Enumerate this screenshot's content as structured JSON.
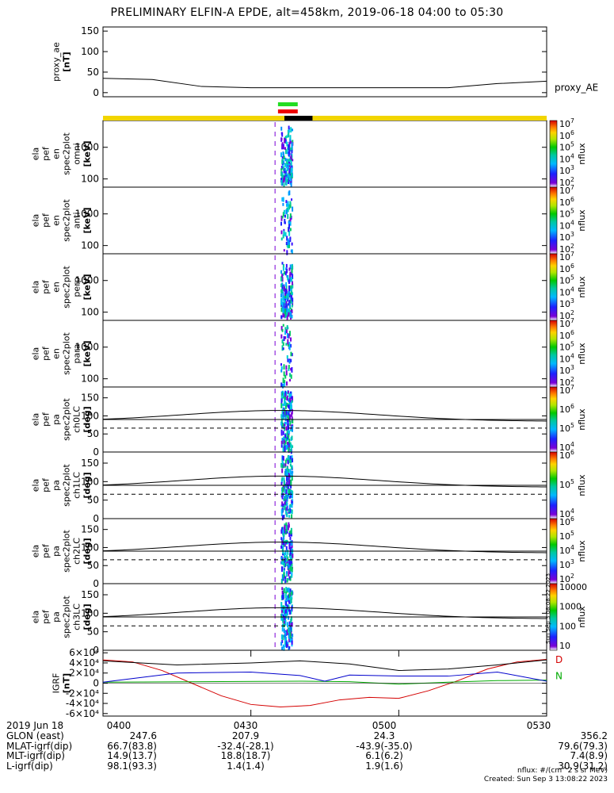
{
  "title": "PRELIMINARY ELFIN-A EPDE, alt=458km, 2019-06-18 04:00 to 05:30",
  "chart_data": [
    {
      "type": "line",
      "id": "proxy_ae",
      "ylabel_lines": [
        "proxy_ae",
        "[nT]"
      ],
      "ylim": [
        -10,
        160
      ],
      "yticks": [
        0,
        50,
        100,
        150
      ],
      "legend": "proxy_AE",
      "x_minutes": [
        0,
        10,
        20,
        30,
        40,
        50,
        60,
        70,
        80,
        90
      ],
      "values": [
        35,
        32,
        15,
        12,
        12,
        12,
        12,
        12,
        22,
        28
      ]
    },
    {
      "type": "heatmap",
      "id": "ela_pef_en_omni",
      "ylabel_lines": [
        "ela",
        "pef",
        "en",
        "spec2plot",
        "omni",
        "[keV]"
      ],
      "yscale": "log",
      "ylim": [
        55,
        7000
      ],
      "yticks": [
        100,
        1000
      ],
      "ytick_labels": [
        "100",
        "1000"
      ],
      "zlabel": "nflux",
      "zticks": [
        "10^2",
        "10^3",
        "10^4",
        "10^5",
        "10^6",
        "10^7"
      ]
    },
    {
      "type": "heatmap",
      "id": "ela_pef_en_anti",
      "ylabel_lines": [
        "ela",
        "pef",
        "en",
        "spec2plot",
        "anti",
        "[keV]"
      ],
      "yscale": "log",
      "ylim": [
        55,
        7000
      ],
      "yticks": [
        100,
        1000
      ],
      "ytick_labels": [
        "100",
        "1000"
      ],
      "zlabel": "nflux",
      "zticks": [
        "10^2",
        "10^3",
        "10^4",
        "10^5",
        "10^6",
        "10^7"
      ]
    },
    {
      "type": "heatmap",
      "id": "ela_pef_en_perp",
      "ylabel_lines": [
        "ela",
        "pef",
        "en",
        "spec2plot",
        "perp",
        "[keV]"
      ],
      "yscale": "log",
      "ylim": [
        55,
        7000
      ],
      "yticks": [
        100,
        1000
      ],
      "ytick_labels": [
        "100",
        "1000"
      ],
      "zlabel": "nflux",
      "zticks": [
        "10^2",
        "10^3",
        "10^4",
        "10^5",
        "10^6",
        "10^7"
      ]
    },
    {
      "type": "heatmap",
      "id": "ela_pef_en_para",
      "ylabel_lines": [
        "ela",
        "pef",
        "en",
        "spec2plot",
        "para",
        "[keV]"
      ],
      "yscale": "log",
      "ylim": [
        55,
        7000
      ],
      "yticks": [
        100,
        1000
      ],
      "ytick_labels": [
        "100",
        "1000"
      ],
      "zlabel": "nflux",
      "zticks": [
        "10^2",
        "10^3",
        "10^4",
        "10^5",
        "10^6",
        "10^7"
      ]
    },
    {
      "type": "heatmap",
      "id": "ela_pef_pa_ch0LC",
      "ylabel_lines": [
        "ela",
        "pef",
        "pa",
        "spec2plot",
        "ch0LC",
        "[deg]"
      ],
      "ylim": [
        0,
        180
      ],
      "yticks": [
        0,
        50,
        100,
        150
      ],
      "zlabel": "nflux",
      "zticks": [
        "10^4",
        "10^5",
        "10^6",
        "10^7"
      ]
    },
    {
      "type": "heatmap",
      "id": "ela_pef_pa_ch1LC",
      "ylabel_lines": [
        "ela",
        "pef",
        "pa",
        "spec2plot",
        "ch1LC",
        "[deg]"
      ],
      "ylim": [
        0,
        180
      ],
      "yticks": [
        0,
        50,
        100,
        150
      ],
      "zlabel": "nflux",
      "zticks": [
        "10^4",
        "10^5",
        "10^6"
      ]
    },
    {
      "type": "heatmap",
      "id": "ela_pef_pa_ch2LC",
      "ylabel_lines": [
        "ela",
        "pef",
        "pa",
        "spec2plot",
        "ch2LC",
        "[deg]"
      ],
      "ylim": [
        0,
        180
      ],
      "yticks": [
        0,
        50,
        100,
        150
      ],
      "zlabel": "nflux",
      "zticks": [
        "10^2",
        "10^3",
        "10^4",
        "10^5",
        "10^6"
      ]
    },
    {
      "type": "heatmap",
      "id": "ela_pef_pa_ch3LC",
      "ylabel_lines": [
        "ela",
        "pef",
        "pa",
        "spec2plot",
        "ch3LC",
        "[deg]"
      ],
      "ylim": [
        0,
        180
      ],
      "yticks": [
        0,
        50,
        100,
        150
      ],
      "zlabel": "nflux",
      "zticks": [
        "10",
        "100",
        "1000",
        "10000"
      ]
    },
    {
      "type": "line",
      "id": "igrf",
      "ylabel_lines": [
        "IGRF",
        "[nT]"
      ],
      "ylim": [
        -65000,
        65000
      ],
      "ytick_labels": [
        "-6×10⁴",
        "-4×10⁴",
        "-2×10⁴",
        "0",
        "2×10⁴",
        "4×10⁴",
        "6×10⁴"
      ],
      "yticks": [
        -60000,
        -40000,
        -20000,
        0,
        20000,
        40000,
        60000
      ],
      "legend": [
        "D",
        "N"
      ],
      "series": [
        {
          "name": "D",
          "color": "#d40000",
          "x_minutes": [
            0,
            6,
            12,
            18,
            24,
            30,
            36,
            42,
            48,
            54,
            60,
            66,
            72,
            78,
            84,
            90
          ],
          "values": [
            46000,
            42000,
            25000,
            0,
            -25000,
            -42000,
            -47000,
            -44000,
            -33000,
            -28000,
            -30000,
            -15000,
            5000,
            28000,
            42000,
            47000
          ]
        },
        {
          "name": "N",
          "color": "#00aa00",
          "x_minutes": [
            0,
            20,
            40,
            50,
            60,
            70,
            80,
            90
          ],
          "values": [
            2000,
            3000,
            4000,
            3000,
            -2000,
            2000,
            5000,
            6000
          ]
        },
        {
          "name": "",
          "color": "#0000cc",
          "x_minutes": [
            0,
            15,
            30,
            40,
            45,
            50,
            60,
            70,
            80,
            90
          ],
          "values": [
            2000,
            20000,
            22000,
            15000,
            4000,
            16000,
            14000,
            14000,
            22000,
            4000
          ]
        },
        {
          "name": "",
          "color": "#000000",
          "x_minutes": [
            0,
            15,
            30,
            40,
            50,
            60,
            70,
            80,
            90
          ],
          "values": [
            44000,
            36000,
            40000,
            44000,
            38000,
            25000,
            28000,
            36000,
            46000
          ]
        }
      ]
    }
  ],
  "time_axis": {
    "date": "2019 Jun 18",
    "labels": [
      "0400",
      "0430",
      "0500",
      "0530"
    ]
  },
  "orbit": [
    {
      "label": "GLON (east)",
      "values": [
        "247.6",
        "207.9",
        "24.3",
        "356.2"
      ]
    },
    {
      "label": "MLAT-igrf(dip)",
      "values": [
        "66.7(83.8)",
        "-32.4(-28.1)",
        "-43.9(-35.0)",
        "79.6(79.3)"
      ]
    },
    {
      "label": "MLT-igrf(dip)",
      "values": [
        "14.9(13.7)",
        "18.8(18.7)",
        "6.1(6.2)",
        "7.4(8.9)"
      ]
    },
    {
      "label": "L-igrf(dip)",
      "values": [
        "98.1(93.3)",
        "1.4(1.4)",
        "1.9(1.6)",
        "30.9(31.2)"
      ]
    }
  ],
  "footer": {
    "units": "nflux: #/(cm^2 s sr MeV)",
    "created": "Created: Sun Sep  3 13:08:22 2023",
    "stamp": "Sun Sep  3 08:08:22 2023"
  },
  "colors": {
    "yellow_bar": "#f2d500",
    "green_bar": "#22dd22",
    "red_bar": "#ee0000"
  }
}
